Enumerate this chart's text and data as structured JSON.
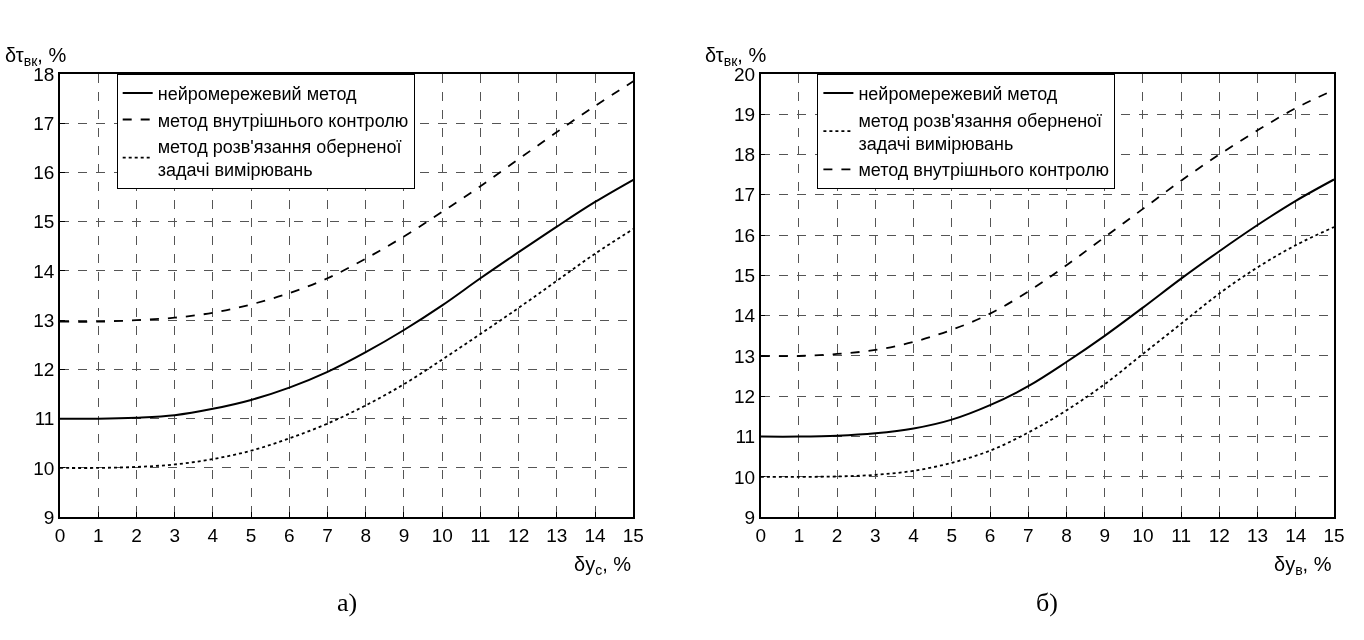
{
  "chart_data": [
    {
      "type": "line",
      "ylabel": "δτ$_{вк}$, %",
      "xlabel": "δу$_{с}$, %",
      "annotations": [
        "а)"
      ],
      "legend": "top left",
      "grid": true,
      "marker": "none",
      "x": [
        0,
        1,
        2,
        3,
        4,
        5,
        6,
        7,
        8,
        9,
        10,
        11,
        12,
        13,
        14,
        15
      ],
      "xlim": [
        0,
        15
      ],
      "xticks": [
        0,
        1,
        2,
        3,
        4,
        5,
        6,
        7,
        8,
        9,
        10,
        11,
        12,
        13,
        14,
        15
      ],
      "ylim": [
        9,
        18
      ],
      "yticks": [
        9,
        10,
        11,
        12,
        13,
        14,
        15,
        16,
        17,
        18
      ],
      "series": [
        {
          "name": "нейромережевий метод",
          "color": "#000000",
          "line_style": "solid",
          "values": [
            11,
            11,
            11.02,
            11.07,
            11.2,
            11.38,
            11.63,
            11.95,
            12.35,
            12.8,
            13.3,
            13.85,
            14.38,
            14.9,
            15.4,
            15.85
          ]
        },
        {
          "name": "метод внутрішнього контролю",
          "color": "#000000",
          "line_style": "dashed",
          "values": [
            12.97,
            12.97,
            13.0,
            13.05,
            13.15,
            13.32,
            13.55,
            13.85,
            14.25,
            14.7,
            15.2,
            15.72,
            16.27,
            16.82,
            17.35,
            17.85
          ]
        },
        {
          "name": "метод розв'язання оберненої задачі вимірювань",
          "color": "#000000",
          "line_style": "dotted",
          "values": [
            10,
            10,
            10.02,
            10.07,
            10.18,
            10.35,
            10.6,
            10.9,
            11.27,
            11.7,
            12.2,
            12.72,
            13.25,
            13.8,
            14.35,
            14.85
          ]
        }
      ]
    },
    {
      "type": "line",
      "ylabel": "δτ$_{вк}$, %",
      "xlabel": "δу$_{в}$, %",
      "annotations": [
        "б)"
      ],
      "legend": "top left",
      "grid": true,
      "marker": "none",
      "x": [
        0,
        1,
        2,
        3,
        4,
        5,
        6,
        7,
        8,
        9,
        10,
        11,
        12,
        13,
        14,
        15
      ],
      "xlim": [
        0,
        15
      ],
      "xticks": [
        0,
        1,
        2,
        3,
        4,
        5,
        6,
        7,
        8,
        9,
        10,
        11,
        12,
        13,
        14,
        15
      ],
      "ylim": [
        9,
        20
      ],
      "yticks": [
        9,
        10,
        11,
        12,
        13,
        14,
        15,
        16,
        17,
        18,
        19,
        20
      ],
      "series": [
        {
          "name": "нейромережевий метод",
          "color": "#000000",
          "line_style": "solid",
          "values": [
            11,
            11,
            11.02,
            11.08,
            11.2,
            11.42,
            11.78,
            12.25,
            12.85,
            13.5,
            14.2,
            14.92,
            15.6,
            16.25,
            16.85,
            17.38
          ]
        },
        {
          "name": "метод розв'язання оберненої задачі вимірювань",
          "color": "#000000",
          "line_style": "dotted",
          "values": [
            10,
            10,
            10.01,
            10.05,
            10.15,
            10.35,
            10.65,
            11.1,
            11.65,
            12.3,
            13.05,
            13.8,
            14.55,
            15.2,
            15.75,
            16.2
          ]
        },
        {
          "name": "метод внутрішнього контролю",
          "color": "#000000",
          "line_style": "dashed",
          "values": [
            13,
            13,
            13.05,
            13.15,
            13.35,
            13.65,
            14.05,
            14.6,
            15.25,
            15.95,
            16.65,
            17.35,
            18.0,
            18.6,
            19.15,
            19.6
          ]
        }
      ]
    }
  ]
}
